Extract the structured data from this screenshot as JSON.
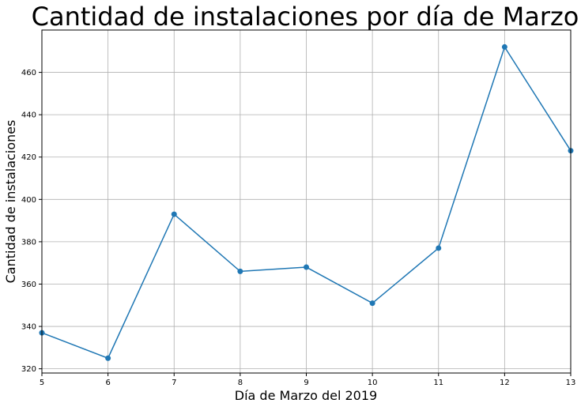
{
  "chart_data": {
    "type": "line",
    "title": "Cantidad de instalaciones por día de Marzo",
    "xlabel": "Día de Marzo del 2019",
    "ylabel": "Cantidad de instalaciones",
    "x": [
      5,
      6,
      7,
      8,
      9,
      10,
      11,
      12,
      13
    ],
    "series": [
      {
        "values": [
          337,
          325,
          393,
          366,
          368,
          351,
          377,
          472,
          423
        ]
      }
    ],
    "xlim": [
      5,
      13
    ],
    "ylim": [
      318,
      480
    ],
    "xticks": [
      "5",
      "6",
      "7",
      "8",
      "9",
      "10",
      "11",
      "12",
      "13"
    ],
    "yticks": [
      "320",
      "340",
      "360",
      "380",
      "400",
      "420",
      "440",
      "460"
    ],
    "grid": true,
    "marker": "circle",
    "colors": {
      "line": "#1f77b4",
      "grid": "#b0b0b0",
      "axes": "#000000"
    }
  }
}
